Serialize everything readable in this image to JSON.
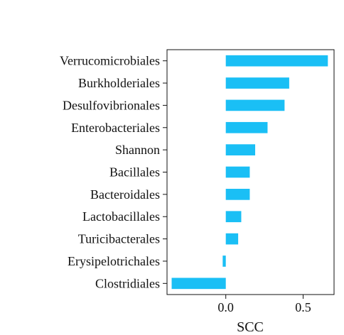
{
  "chart_data": {
    "type": "bar",
    "orientation": "horizontal",
    "categories": [
      "Verrucomicrobiales",
      "Burkholderiales",
      "Desulfovibrionales",
      "Enterobacteriales",
      "Shannon",
      "Bacillales",
      "Bacteroidales",
      "Lactobacillales",
      "Turicibacterales",
      "Erysipelotrichales",
      "Clostridiales"
    ],
    "values": [
      0.66,
      0.41,
      0.38,
      0.27,
      0.19,
      0.155,
      0.155,
      0.1,
      0.08,
      -0.02,
      -0.35
    ],
    "xlabel": "SCC",
    "xticks": [
      0.0,
      0.5
    ],
    "xtick_labels": [
      "0.0",
      "0.5"
    ],
    "xlim": [
      -0.38,
      0.7
    ],
    "bar_color": "#1abff5",
    "grid": false
  }
}
